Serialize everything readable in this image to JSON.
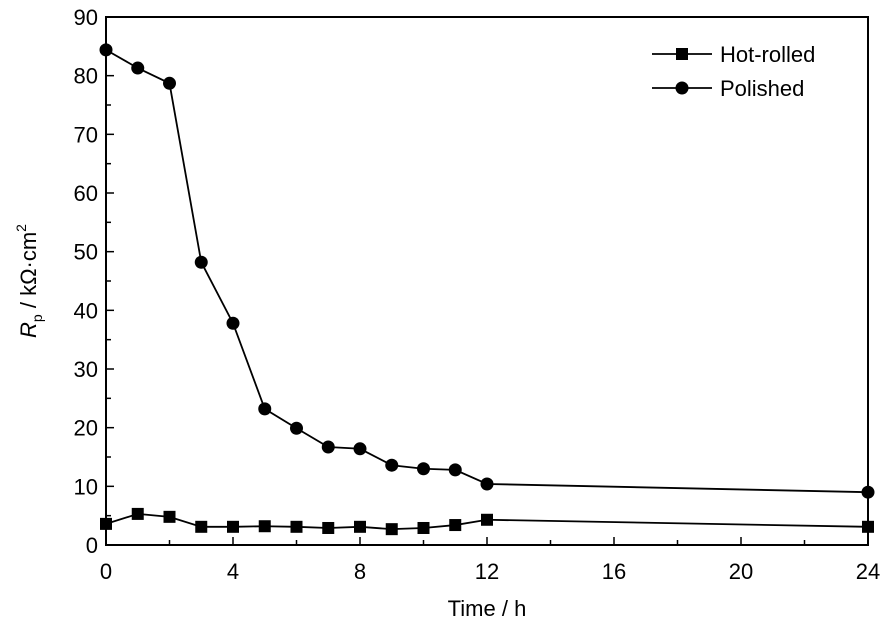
{
  "chart_data": {
    "type": "line",
    "title": "",
    "xlabel": "Time / h",
    "ylabel_main": "R",
    "ylabel_sub": "p",
    "ylabel_rest": " / kΩ·cm",
    "ylabel_sup": "2",
    "xlim": [
      0,
      24
    ],
    "ylim": [
      0,
      90
    ],
    "xticks": [
      0,
      4,
      8,
      12,
      16,
      20,
      24
    ],
    "yticks": [
      0,
      10,
      20,
      30,
      40,
      50,
      60,
      70,
      80,
      90
    ],
    "grid": false,
    "legend_position": "top-right",
    "series": [
      {
        "name": "Hot-rolled",
        "marker": "square",
        "x": [
          0,
          1,
          2,
          3,
          4,
          5,
          6,
          7,
          8,
          9,
          10,
          11,
          12,
          24
        ],
        "y": [
          3.6,
          5.3,
          4.8,
          3.1,
          3.1,
          3.2,
          3.1,
          2.9,
          3.1,
          2.7,
          2.9,
          3.4,
          4.3,
          3.1
        ]
      },
      {
        "name": "Polished",
        "marker": "circle",
        "x": [
          0,
          1,
          2,
          3,
          4,
          5,
          6,
          7,
          8,
          9,
          10,
          11,
          12,
          24
        ],
        "y": [
          84.4,
          81.3,
          78.7,
          48.2,
          37.8,
          23.2,
          19.9,
          16.7,
          16.4,
          13.6,
          13.0,
          12.8,
          10.4,
          9.0
        ]
      }
    ]
  }
}
